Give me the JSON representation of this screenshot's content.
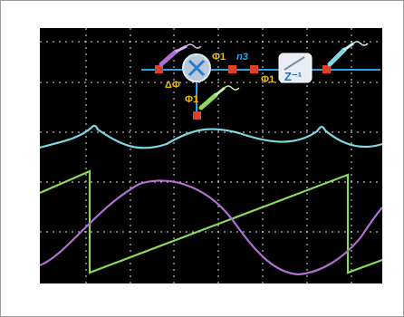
{
  "diagram": {
    "phi_label_1": "Φ1",
    "phi_label_2": "Φ1",
    "phi_label_3": "Φ1",
    "n_label": "n3",
    "delta_phi_label": "ΔΦ",
    "delay_label": "Z⁻¹"
  },
  "colors": {
    "background": "#000000",
    "grid": "#ffffff",
    "cyan_trace": "#7fd8e0",
    "green_trace": "#8cd860",
    "purple_trace": "#b070d0",
    "signal_line": "#2aa6e6",
    "connector": "#e0402a"
  }
}
